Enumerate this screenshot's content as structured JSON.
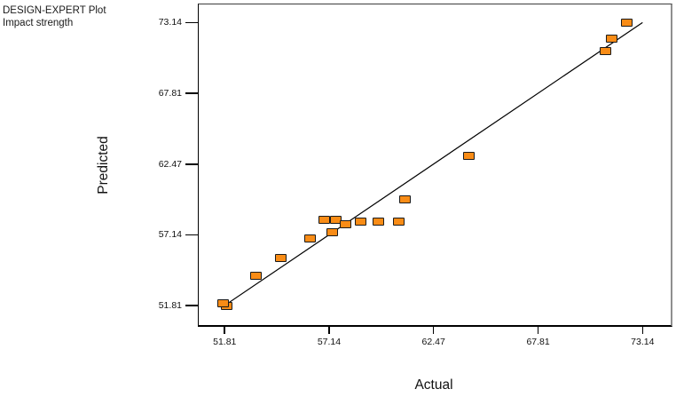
{
  "header": {
    "line1": "DESIGN-EXPERT Plot",
    "line2": "Impact strength"
  },
  "chart_data": {
    "type": "scatter",
    "title": "",
    "xlabel": "Actual",
    "ylabel": "Predicted",
    "x_tick_labels": [
      "51.81",
      "57.14",
      "62.47",
      "67.81",
      "73.14"
    ],
    "y_tick_labels": [
      "51.81",
      "57.14",
      "62.47",
      "67.81",
      "73.14"
    ],
    "xlim": [
      50.44,
      74.53
    ],
    "ylim": [
      50.4,
      74.57
    ],
    "grid": false,
    "legend": "none",
    "identity_line": {
      "x1": 51.81,
      "y1": 51.81,
      "x2": 73.14,
      "y2": 73.14
    },
    "points": [
      {
        "actual": 51.9,
        "predicted": 51.8
      },
      {
        "actual": 51.75,
        "predicted": 51.95
      },
      {
        "actual": 53.42,
        "predicted": 54.02
      },
      {
        "actual": 54.68,
        "predicted": 55.4
      },
      {
        "actual": 56.19,
        "predicted": 56.87
      },
      {
        "actual": 57.3,
        "predicted": 57.36
      },
      {
        "actual": 56.88,
        "predicted": 58.26
      },
      {
        "actual": 57.46,
        "predicted": 58.26
      },
      {
        "actual": 58.0,
        "predicted": 57.96
      },
      {
        "actual": 58.76,
        "predicted": 58.16
      },
      {
        "actual": 59.66,
        "predicted": 58.16
      },
      {
        "actual": 60.71,
        "predicted": 58.16
      },
      {
        "actual": 61.02,
        "predicted": 59.81
      },
      {
        "actual": 64.26,
        "predicted": 63.06
      },
      {
        "actual": 71.23,
        "predicted": 70.99
      },
      {
        "actual": 71.57,
        "predicted": 71.92
      },
      {
        "actual": 72.35,
        "predicted": 73.1
      }
    ],
    "colors": {
      "point_fill": "#F98C16",
      "point_border": "#1A1A1A",
      "line": "#000000",
      "axis": "#000000"
    }
  }
}
